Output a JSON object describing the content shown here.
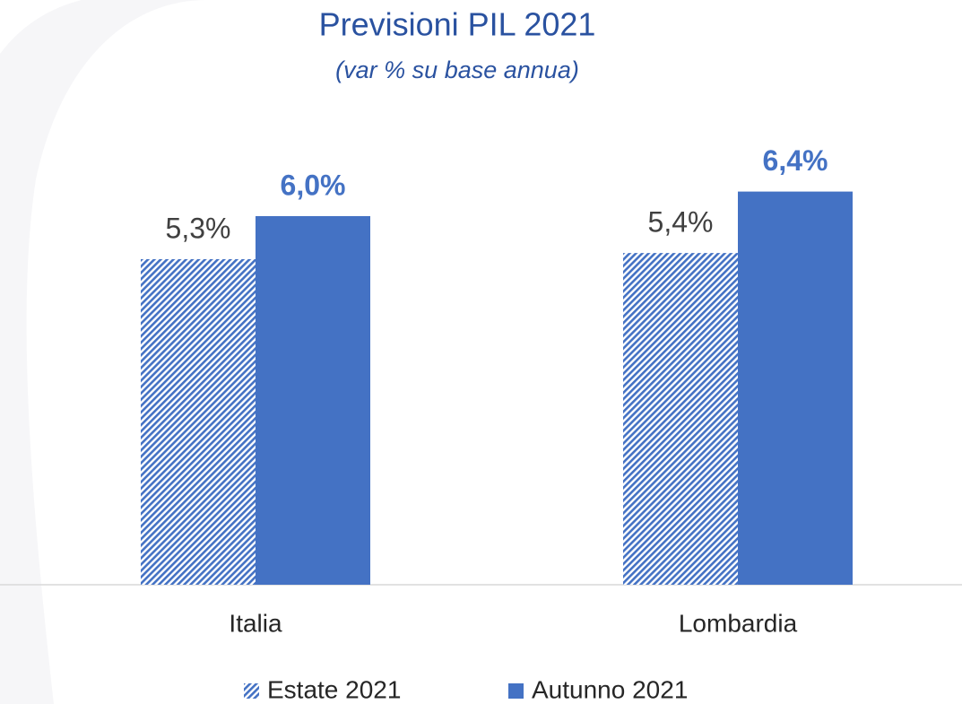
{
  "chart_data": {
    "type": "bar",
    "title": "Previsioni PIL 2021",
    "subtitle": "(var % su base annua)",
    "categories": [
      "Italia",
      "Lombardia"
    ],
    "series": [
      {
        "name": "Estate 2021",
        "color": "#4472c4",
        "pattern": "hatch",
        "values": [
          5.3,
          5.4
        ],
        "value_labels": [
          "5,3%",
          "5,4%"
        ]
      },
      {
        "name": "Autunno 2021",
        "color": "#4472c4",
        "pattern": "solid",
        "values": [
          6.0,
          6.4
        ],
        "value_labels": [
          "6,0%",
          "6,4%"
        ]
      }
    ],
    "legend": "bottom"
  }
}
